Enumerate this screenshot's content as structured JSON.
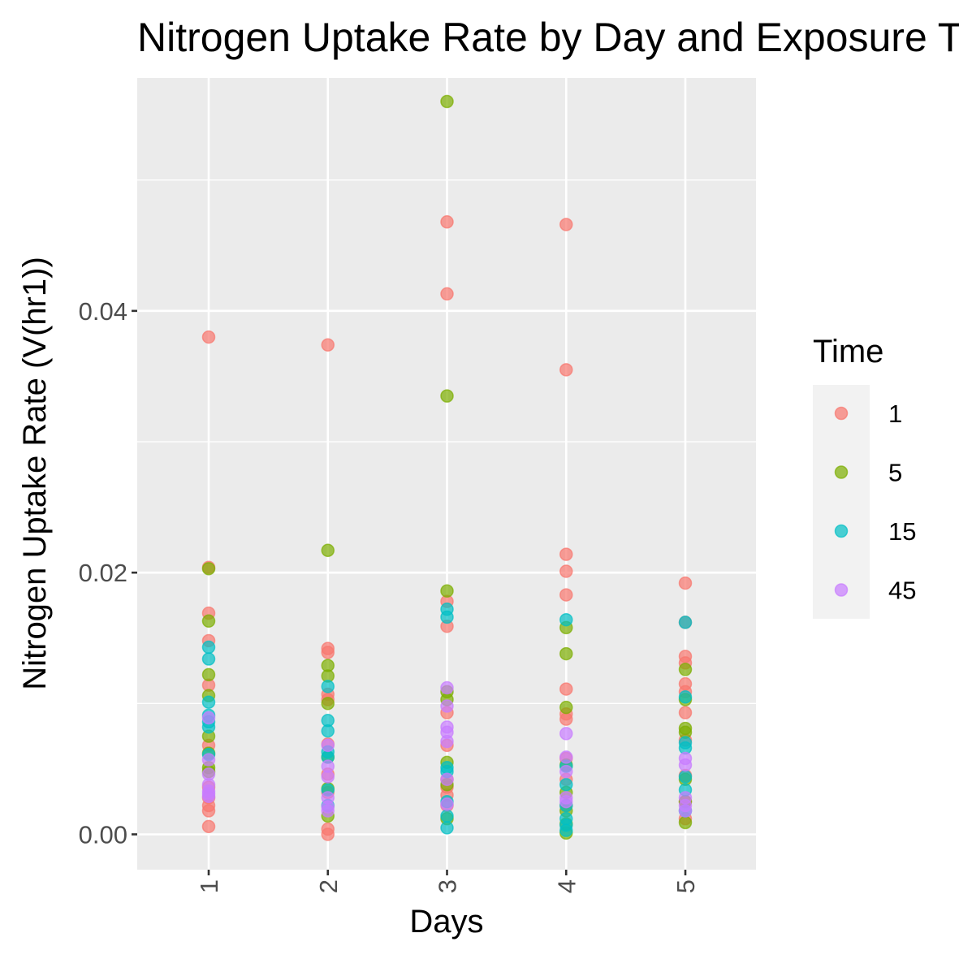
{
  "chart_data": {
    "type": "scatter",
    "title": "Nitrogen Uptake Rate by Day and Exposure Time",
    "xlabel": "Days",
    "ylabel": "Nitrogen Uptake Rate (V(hr1))",
    "categories": [
      "1",
      "2",
      "3",
      "4",
      "5"
    ],
    "yticks": [
      "0.00",
      "0.02",
      "0.04"
    ],
    "ylim": [
      -0.0027,
      0.0578
    ],
    "grid": true,
    "legend": {
      "title": "Time",
      "position": "right",
      "entries": [
        "1",
        "5",
        "15",
        "45"
      ]
    },
    "colors": {
      "1": "#F8766D",
      "5": "#7CAE00",
      "15": "#00BFC4",
      "45": "#C77CFF"
    },
    "series": [
      {
        "name": "1",
        "points": [
          [
            1,
            0.038
          ],
          [
            1,
            0.0204
          ],
          [
            1,
            0.0169
          ],
          [
            1,
            0.0148
          ],
          [
            1,
            0.0114
          ],
          [
            1,
            0.0068
          ],
          [
            1,
            0.0036
          ],
          [
            1,
            0.0028
          ],
          [
            1,
            0.0022
          ],
          [
            1,
            0.0018
          ],
          [
            1,
            0.0006
          ],
          [
            2,
            0.0374
          ],
          [
            2,
            0.0142
          ],
          [
            2,
            0.0139
          ],
          [
            2,
            0.0107
          ],
          [
            2,
            0.0103
          ],
          [
            2,
            0.0069
          ],
          [
            2,
            0.0046
          ],
          [
            2,
            0.0032
          ],
          [
            2,
            0.0004
          ],
          [
            2,
            0.0
          ],
          [
            3,
            0.0468
          ],
          [
            3,
            0.0413
          ],
          [
            3,
            0.0178
          ],
          [
            3,
            0.0159
          ],
          [
            3,
            0.0093
          ],
          [
            3,
            0.0068
          ],
          [
            3,
            0.0042
          ],
          [
            3,
            0.0036
          ],
          [
            3,
            0.003
          ],
          [
            3,
            0.0022
          ],
          [
            4,
            0.0466
          ],
          [
            4,
            0.0355
          ],
          [
            4,
            0.0214
          ],
          [
            4,
            0.0201
          ],
          [
            4,
            0.0183
          ],
          [
            4,
            0.0111
          ],
          [
            4,
            0.0092
          ],
          [
            4,
            0.0088
          ],
          [
            4,
            0.0058
          ],
          [
            4,
            0.0042
          ],
          [
            4,
            0.0022
          ],
          [
            5,
            0.0192
          ],
          [
            5,
            0.0162
          ],
          [
            5,
            0.0136
          ],
          [
            5,
            0.0131
          ],
          [
            5,
            0.0115
          ],
          [
            5,
            0.0109
          ],
          [
            5,
            0.0093
          ],
          [
            5,
            0.0072
          ],
          [
            5,
            0.0045
          ],
          [
            5,
            0.0025
          ],
          [
            5,
            0.0012
          ]
        ]
      },
      {
        "name": "5",
        "points": [
          [
            1,
            0.0203
          ],
          [
            1,
            0.0163
          ],
          [
            1,
            0.0122
          ],
          [
            1,
            0.0106
          ],
          [
            1,
            0.0075
          ],
          [
            1,
            0.0062
          ],
          [
            1,
            0.0051
          ],
          [
            1,
            0.0048
          ],
          [
            2,
            0.0217
          ],
          [
            2,
            0.0129
          ],
          [
            2,
            0.0121
          ],
          [
            2,
            0.01
          ],
          [
            2,
            0.0059
          ],
          [
            2,
            0.0035
          ],
          [
            2,
            0.0014
          ],
          [
            3,
            0.056
          ],
          [
            3,
            0.0335
          ],
          [
            3,
            0.0186
          ],
          [
            3,
            0.0109
          ],
          [
            3,
            0.0103
          ],
          [
            3,
            0.0055
          ],
          [
            3,
            0.0038
          ],
          [
            3,
            0.0012
          ],
          [
            4,
            0.0158
          ],
          [
            4,
            0.0138
          ],
          [
            4,
            0.0097
          ],
          [
            4,
            0.0053
          ],
          [
            4,
            0.0032
          ],
          [
            4,
            0.0018
          ],
          [
            4,
            0.0008
          ],
          [
            4,
            0.0001
          ],
          [
            5,
            0.0126
          ],
          [
            5,
            0.0103
          ],
          [
            5,
            0.0081
          ],
          [
            5,
            0.0078
          ],
          [
            5,
            0.0042
          ],
          [
            5,
            0.0025
          ],
          [
            5,
            0.0009
          ]
        ]
      },
      {
        "name": "15",
        "points": [
          [
            1,
            0.0143
          ],
          [
            1,
            0.0134
          ],
          [
            1,
            0.0101
          ],
          [
            1,
            0.0091
          ],
          [
            1,
            0.0086
          ],
          [
            1,
            0.0082
          ],
          [
            1,
            0.0061
          ],
          [
            2,
            0.0113
          ],
          [
            2,
            0.0087
          ],
          [
            2,
            0.0079
          ],
          [
            2,
            0.0063
          ],
          [
            2,
            0.0059
          ],
          [
            2,
            0.0034
          ],
          [
            2,
            0.0022
          ],
          [
            3,
            0.0172
          ],
          [
            3,
            0.0166
          ],
          [
            3,
            0.0051
          ],
          [
            3,
            0.0048
          ],
          [
            3,
            0.0025
          ],
          [
            3,
            0.0014
          ],
          [
            3,
            0.0005
          ],
          [
            4,
            0.0164
          ],
          [
            4,
            0.0052
          ],
          [
            4,
            0.0038
          ],
          [
            4,
            0.0022
          ],
          [
            4,
            0.0012
          ],
          [
            4,
            0.0007
          ],
          [
            4,
            0.0003
          ],
          [
            5,
            0.0162
          ],
          [
            5,
            0.0105
          ],
          [
            5,
            0.007
          ],
          [
            5,
            0.0066
          ],
          [
            5,
            0.0044
          ],
          [
            5,
            0.0034
          ],
          [
            5,
            0.0018
          ]
        ]
      },
      {
        "name": "45",
        "points": [
          [
            1,
            0.0089
          ],
          [
            1,
            0.0057
          ],
          [
            1,
            0.0046
          ],
          [
            1,
            0.0038
          ],
          [
            1,
            0.0033
          ],
          [
            1,
            0.0031
          ],
          [
            1,
            0.0029
          ],
          [
            2,
            0.0068
          ],
          [
            2,
            0.0052
          ],
          [
            2,
            0.0044
          ],
          [
            2,
            0.0028
          ],
          [
            2,
            0.0021
          ],
          [
            2,
            0.0018
          ],
          [
            3,
            0.0112
          ],
          [
            3,
            0.0098
          ],
          [
            3,
            0.0082
          ],
          [
            3,
            0.0078
          ],
          [
            3,
            0.0071
          ],
          [
            3,
            0.0042
          ],
          [
            3,
            0.0023
          ],
          [
            4,
            0.0077
          ],
          [
            4,
            0.0059
          ],
          [
            4,
            0.0048
          ],
          [
            4,
            0.0028
          ],
          [
            4,
            0.0025
          ],
          [
            5,
            0.0058
          ],
          [
            5,
            0.0053
          ],
          [
            5,
            0.0028
          ],
          [
            5,
            0.0022
          ],
          [
            5,
            0.0018
          ]
        ]
      }
    ]
  }
}
